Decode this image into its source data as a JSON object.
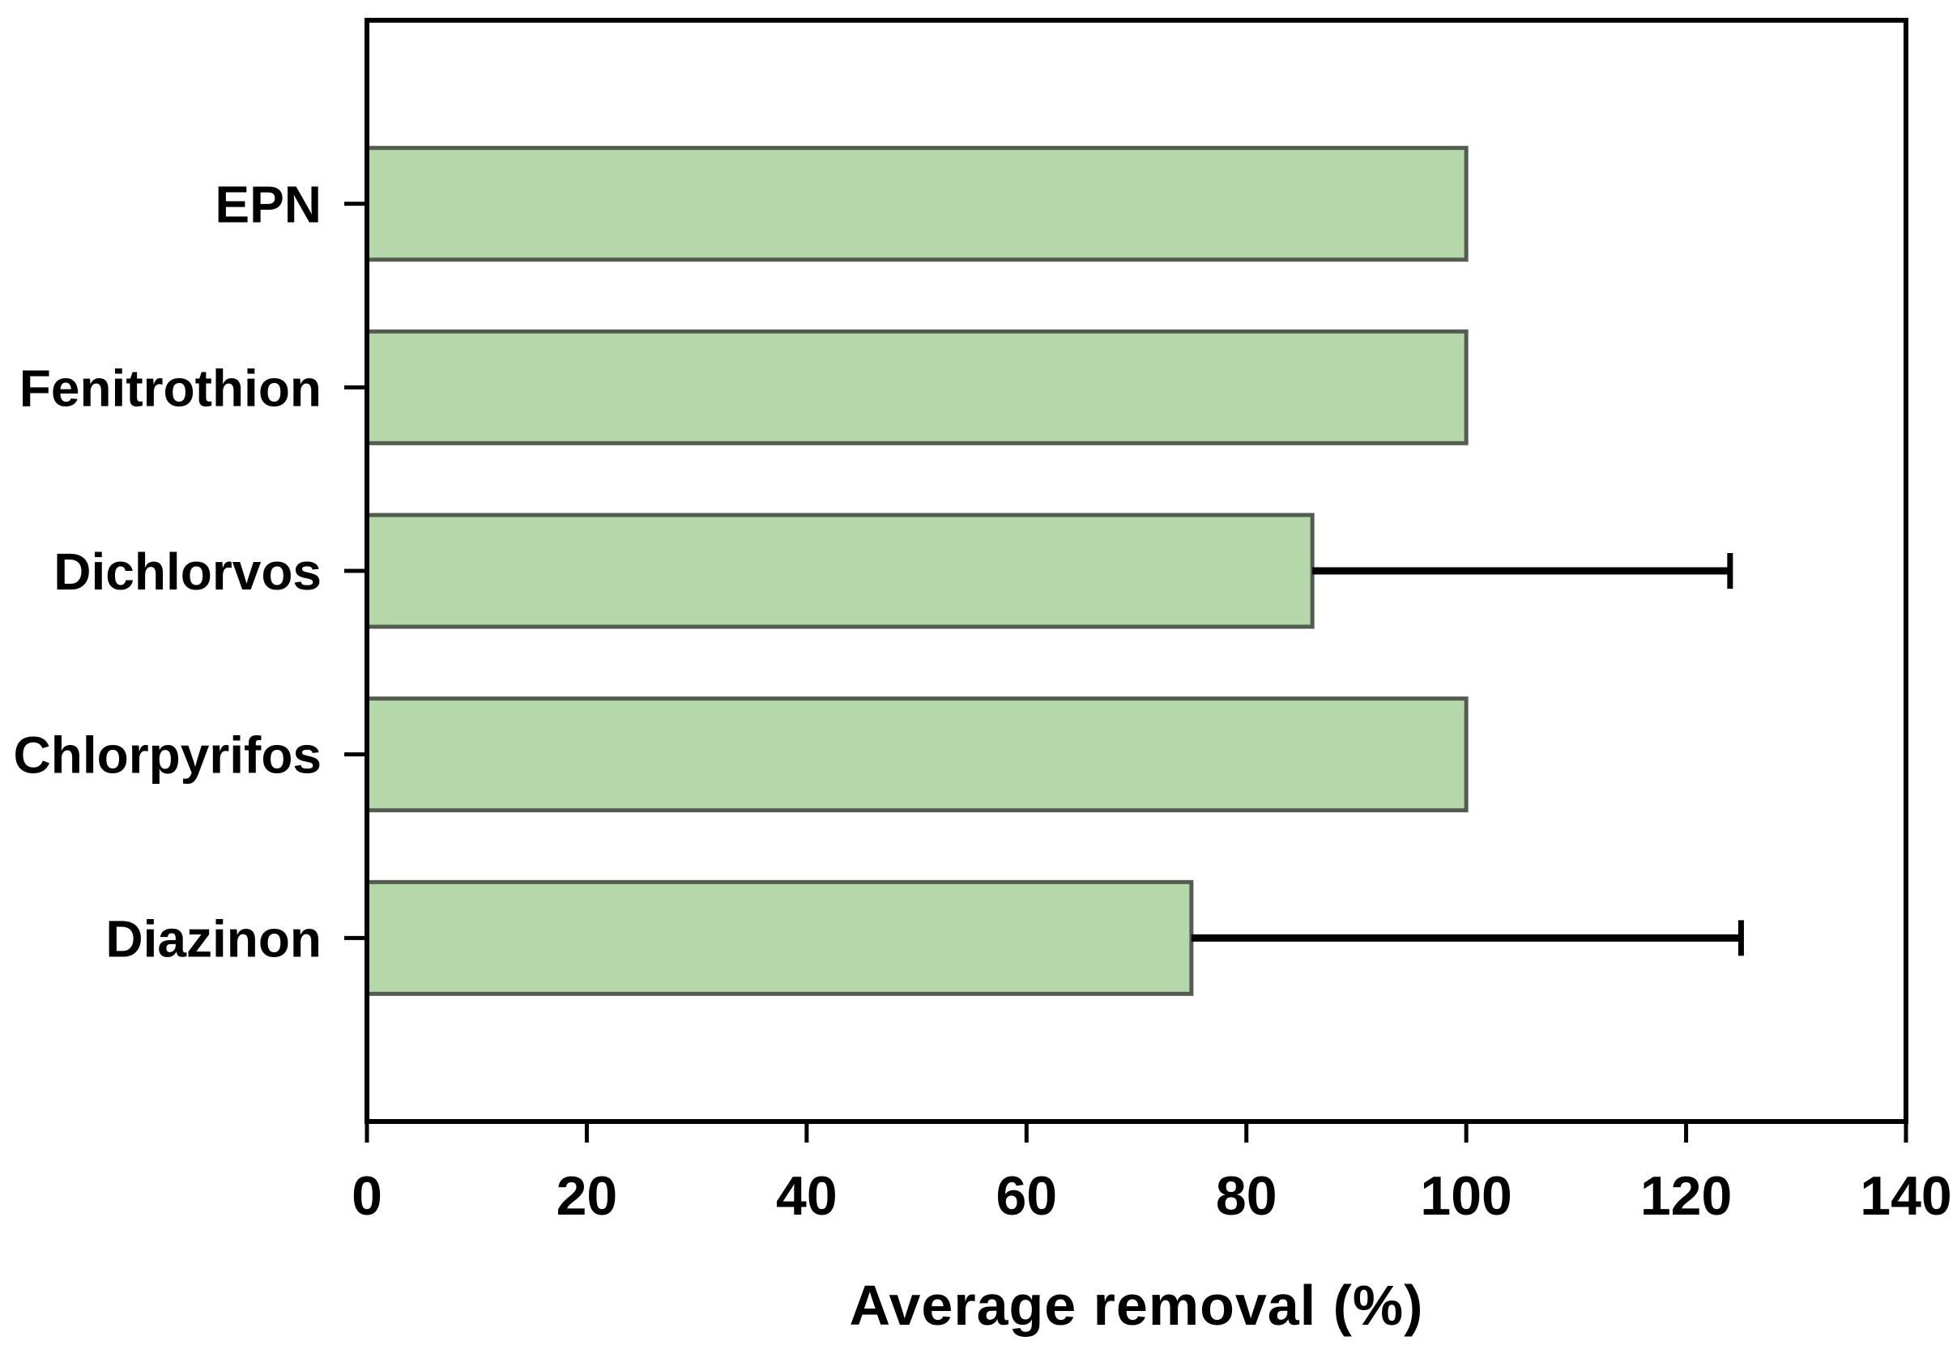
{
  "chart_data": {
    "type": "bar",
    "orientation": "horizontal",
    "title": "",
    "xlabel": "Average removal (%)",
    "ylabel": "",
    "categories": [
      "EPN",
      "Fenitrothion",
      "Dichlorvos",
      "Chlorpyrifos",
      "Diazinon"
    ],
    "values": [
      100,
      100,
      86,
      100,
      75
    ],
    "upper_errors": [
      0,
      0,
      38,
      0,
      50
    ],
    "error_whisker_ends": [
      null,
      null,
      124,
      null,
      125
    ],
    "x_ticks": [
      0,
      20,
      40,
      60,
      80,
      100,
      120,
      140
    ],
    "xlim": [
      0,
      140
    ],
    "grid": false,
    "legend_position": "none",
    "colors": {
      "bar_fill": "#b5d8aa",
      "bar_border": "#545c52",
      "axis": "#000000",
      "text": "#000000",
      "background": "#ffffff"
    }
  }
}
